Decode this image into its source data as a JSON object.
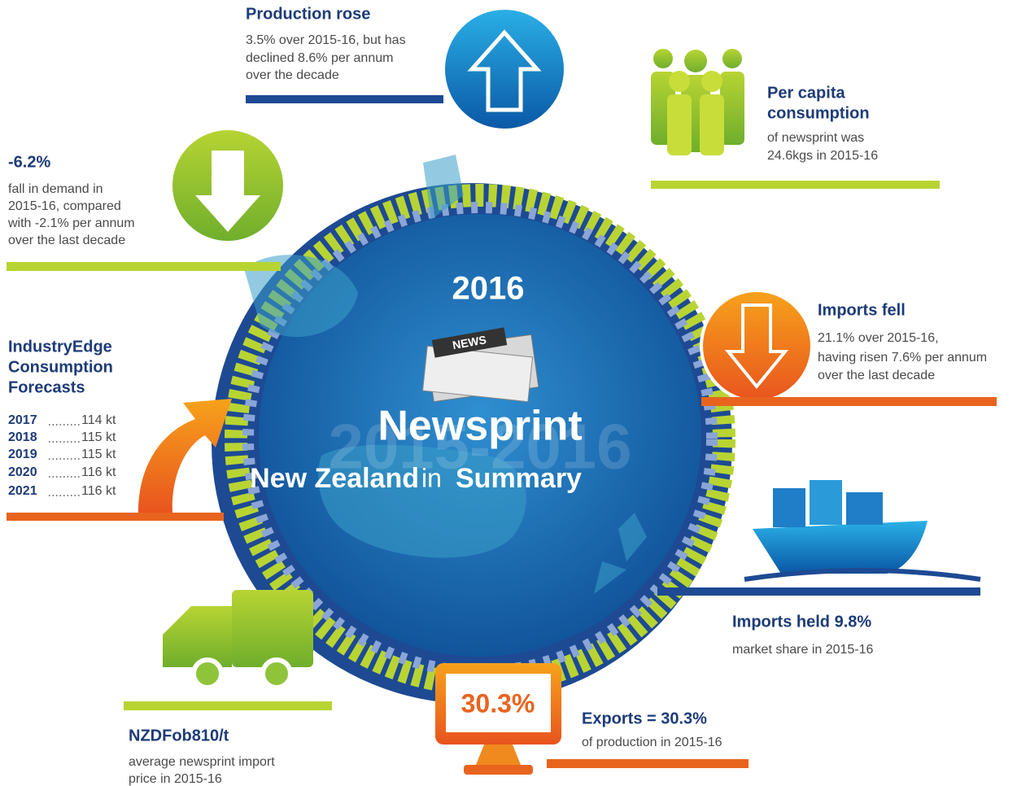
{
  "production": {
    "title": "Production rose",
    "lines": [
      "3.5% over 2015-16, but has",
      "declined 8.6% per annum",
      "over the decade"
    ]
  },
  "per_capita": {
    "title": [
      "Per capita",
      "consumption"
    ],
    "lines": [
      "of newsprint was",
      "24.6kgs in 2015-16"
    ]
  },
  "demand": {
    "title": "-6.2%",
    "lines": [
      "fall in demand in",
      "2015-16, compared",
      "with -2.1% per annum",
      "over the last decade"
    ]
  },
  "center": {
    "year": "2016",
    "icon_label": "NEWS",
    "ghost": "2015-2016",
    "title": "Newsprint",
    "subtitle": [
      "New Zealand",
      "in",
      "Summary"
    ]
  },
  "imports_fell": {
    "title": "Imports fell",
    "lines": [
      "21.1% over 2015-16,",
      "having risen 7.6% per annum",
      "over the last decade"
    ]
  },
  "forecasts": {
    "title": [
      "IndustryEdge",
      "Consumption",
      "Forecasts"
    ],
    "rows": [
      {
        "year": "2017",
        "value": "114 kt"
      },
      {
        "year": "2018",
        "value": "115 kt"
      },
      {
        "year": "2019",
        "value": "115 kt"
      },
      {
        "year": "2020",
        "value": "116 kt"
      },
      {
        "year": "2021",
        "value": "116 kt"
      }
    ]
  },
  "imports_held": {
    "title": "Imports held 9.8%",
    "lines": [
      "market share in 2015-16"
    ]
  },
  "exports": {
    "badge": "30.3%",
    "title": "Exports = 30.3%",
    "lines": [
      "of production in 2015-16"
    ]
  },
  "price": {
    "title": "NZDFob810/t",
    "lines": [
      "average newsprint import",
      "price in 2015-16"
    ]
  }
}
